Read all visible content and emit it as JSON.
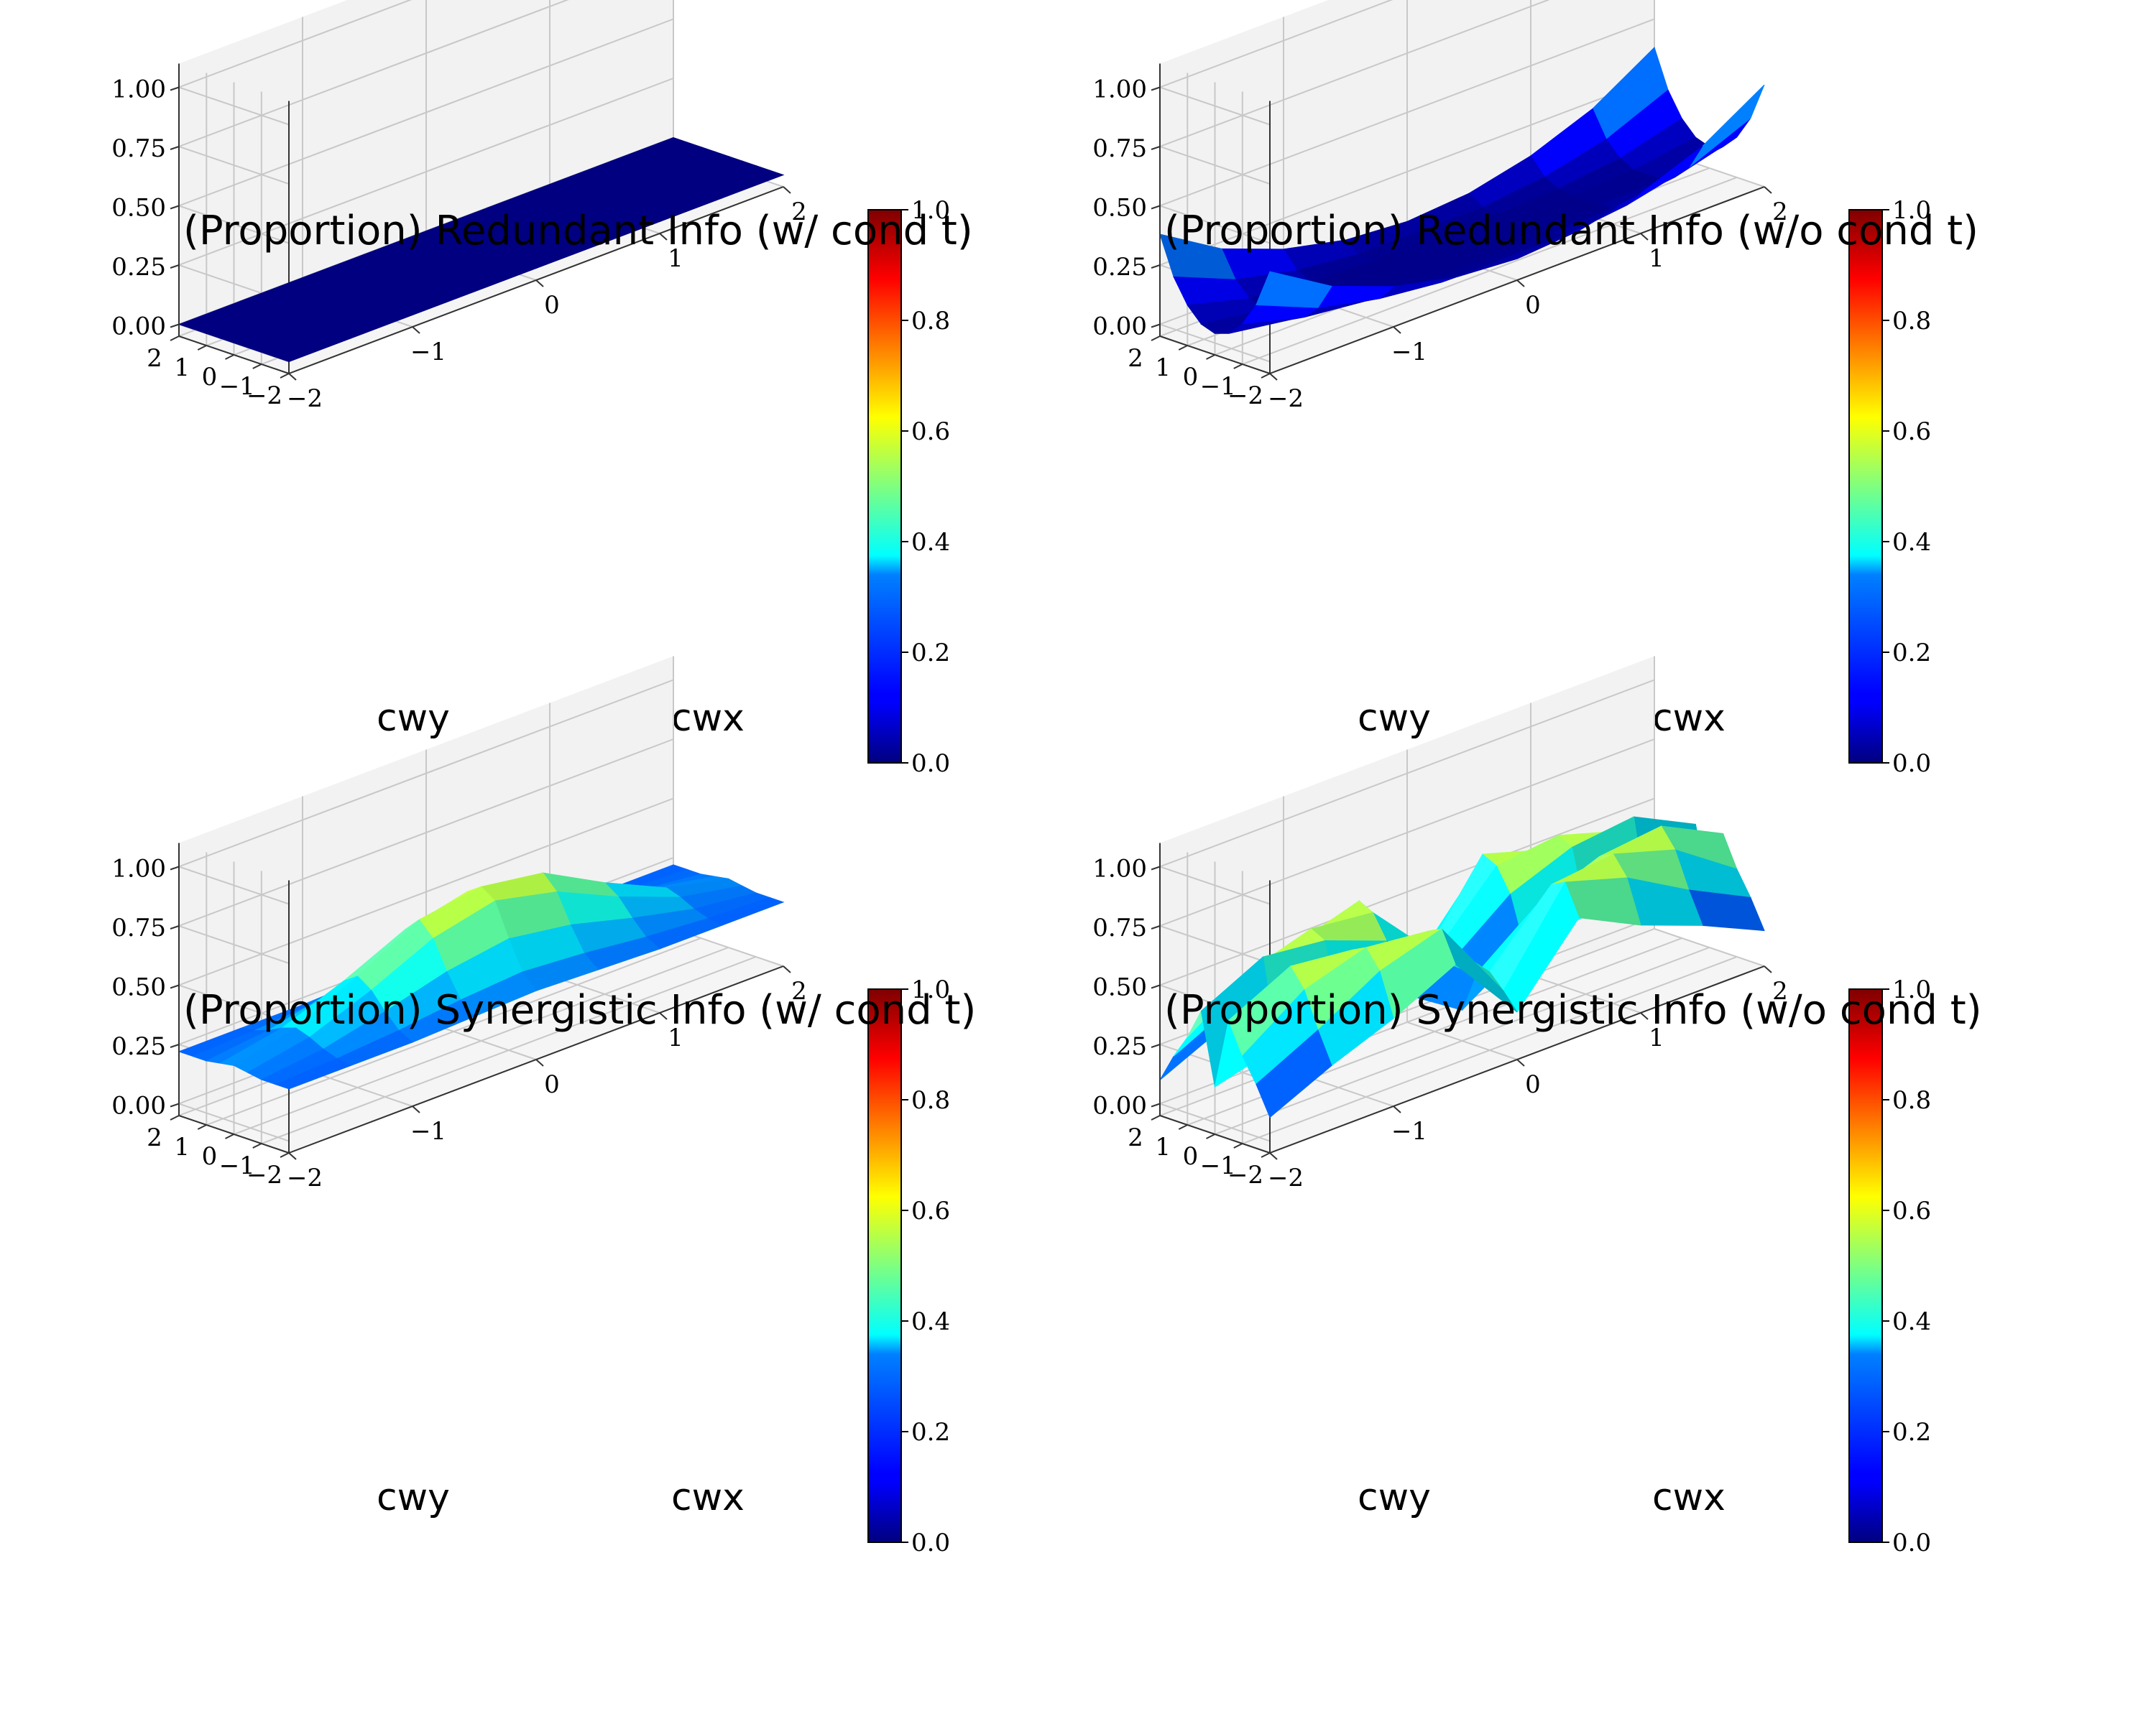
{
  "chart_data": [
    {
      "type": "surface",
      "title": "(Proportion) Redundant Info (w/ cond t)",
      "xlabel": "cwx",
      "ylabel": "cwy",
      "xlim": [
        -2,
        2
      ],
      "ylim": [
        -2,
        2
      ],
      "zlim": [
        -0.05,
        1.1
      ],
      "x_ticks": [
        "−2",
        "−1",
        "0",
        "1",
        "2"
      ],
      "y_ticks": [
        "−2",
        "−1",
        "0",
        "1",
        "2"
      ],
      "z_ticks": [
        "0.00",
        "0.25",
        "0.50",
        "0.75",
        "1.00"
      ],
      "colorbar": {
        "range": [
          0,
          1
        ],
        "ticks": [
          "0.0",
          "0.2",
          "0.4",
          "0.6",
          "0.8",
          "1.0"
        ],
        "colormap": "jet"
      },
      "x": [
        -2,
        -1.5,
        -1,
        -0.5,
        0,
        0.5,
        1,
        1.5,
        2
      ],
      "y": [
        -2,
        -1.5,
        -1,
        -0.5,
        0,
        0.5,
        1,
        1.5,
        2
      ],
      "z": [
        [
          0,
          0,
          0,
          0,
          0,
          0,
          0,
          0,
          0
        ],
        [
          0,
          0,
          0,
          0,
          0,
          0,
          0,
          0,
          0
        ],
        [
          0,
          0,
          0,
          0,
          0,
          0,
          0,
          0,
          0
        ],
        [
          0,
          0,
          0,
          0,
          0,
          0,
          0,
          0,
          0
        ],
        [
          0,
          0,
          0,
          0,
          0,
          0,
          0,
          0,
          0
        ],
        [
          0,
          0,
          0,
          0,
          0,
          0,
          0,
          0,
          0
        ],
        [
          0,
          0,
          0,
          0,
          0,
          0,
          0,
          0,
          0
        ],
        [
          0,
          0,
          0,
          0,
          0,
          0,
          0,
          0,
          0
        ],
        [
          0,
          0,
          0,
          0,
          0,
          0,
          0,
          0,
          0
        ]
      ]
    },
    {
      "type": "surface",
      "title": "(Proportion) Redundant Info (w/o cond t)",
      "xlabel": "cwx",
      "ylabel": "cwy",
      "xlim": [
        -2,
        2
      ],
      "ylim": [
        -2,
        2
      ],
      "zlim": [
        -0.05,
        1.1
      ],
      "x_ticks": [
        "−2",
        "−1",
        "0",
        "1",
        "2"
      ],
      "y_ticks": [
        "−2",
        "−1",
        "0",
        "1",
        "2"
      ],
      "z_ticks": [
        "0.00",
        "0.25",
        "0.50",
        "0.75",
        "1.00"
      ],
      "colorbar": {
        "range": [
          0,
          1
        ],
        "ticks": [
          "0.0",
          "0.2",
          "0.4",
          "0.6",
          "0.8",
          "1.0"
        ],
        "colormap": "jet"
      },
      "x": [
        -2,
        -1.5,
        -1,
        -0.5,
        0,
        0.5,
        1,
        1.5,
        2
      ],
      "y": [
        -2,
        -1.5,
        -1,
        -0.5,
        0,
        0.5,
        1,
        1.5,
        2
      ],
      "z": [
        [
          0.38,
          0.22,
          0.12,
          0.06,
          0.04,
          0.06,
          0.12,
          0.22,
          0.38
        ],
        [
          0.22,
          0.11,
          0.05,
          0.02,
          0.02,
          0.02,
          0.05,
          0.11,
          0.22
        ],
        [
          0.12,
          0.05,
          0.02,
          0.01,
          0.01,
          0.01,
          0.02,
          0.05,
          0.12
        ],
        [
          0.06,
          0.02,
          0.01,
          0.01,
          0.01,
          0.01,
          0.01,
          0.02,
          0.06
        ],
        [
          0.04,
          0.02,
          0.01,
          0.01,
          0.01,
          0.01,
          0.01,
          0.02,
          0.04
        ],
        [
          0.06,
          0.02,
          0.01,
          0.01,
          0.01,
          0.01,
          0.01,
          0.02,
          0.06
        ],
        [
          0.12,
          0.05,
          0.02,
          0.01,
          0.01,
          0.01,
          0.02,
          0.05,
          0.12
        ],
        [
          0.22,
          0.11,
          0.05,
          0.02,
          0.02,
          0.02,
          0.05,
          0.11,
          0.22
        ],
        [
          0.38,
          0.22,
          0.12,
          0.06,
          0.04,
          0.06,
          0.12,
          0.22,
          0.38
        ]
      ]
    },
    {
      "type": "surface",
      "title": "(Proportion) Synergistic Info (w/ cond t)",
      "xlabel": "cwx",
      "ylabel": "cwy",
      "xlim": [
        -2,
        2
      ],
      "ylim": [
        -2,
        2
      ],
      "zlim": [
        -0.05,
        1.1
      ],
      "x_ticks": [
        "−2",
        "−1",
        "0",
        "1",
        "2"
      ],
      "y_ticks": [
        "−2",
        "−1",
        "0",
        "1",
        "2"
      ],
      "z_ticks": [
        "0.00",
        "0.25",
        "0.50",
        "0.75",
        "1.00"
      ],
      "colorbar": {
        "range": [
          0,
          1
        ],
        "ticks": [
          "0.0",
          "0.2",
          "0.4",
          "0.6",
          "0.8",
          "1.0"
        ],
        "colormap": "jet"
      },
      "x": [
        -2,
        -1.5,
        -1,
        -0.5,
        0,
        0.5,
        1,
        1.5,
        2
      ],
      "y": [
        -2,
        -1.5,
        -1,
        -0.5,
        0,
        0.5,
        1,
        1.5,
        2
      ],
      "z": [
        [
          0.22,
          0.22,
          0.22,
          0.23,
          0.24,
          0.23,
          0.22,
          0.22,
          0.22
        ],
        [
          0.22,
          0.23,
          0.25,
          0.28,
          0.3,
          0.28,
          0.25,
          0.23,
          0.22
        ],
        [
          0.22,
          0.25,
          0.31,
          0.38,
          0.42,
          0.38,
          0.31,
          0.25,
          0.22
        ],
        [
          0.23,
          0.28,
          0.38,
          0.5,
          0.56,
          0.5,
          0.38,
          0.28,
          0.23
        ],
        [
          0.24,
          0.3,
          0.42,
          0.56,
          0.6,
          0.56,
          0.42,
          0.3,
          0.24
        ],
        [
          0.23,
          0.28,
          0.38,
          0.5,
          0.56,
          0.5,
          0.38,
          0.28,
          0.23
        ],
        [
          0.22,
          0.25,
          0.31,
          0.38,
          0.42,
          0.38,
          0.31,
          0.25,
          0.22
        ],
        [
          0.22,
          0.23,
          0.25,
          0.28,
          0.3,
          0.28,
          0.25,
          0.23,
          0.22
        ],
        [
          0.22,
          0.22,
          0.22,
          0.23,
          0.24,
          0.23,
          0.22,
          0.22,
          0.22
        ]
      ]
    },
    {
      "type": "surface",
      "title": "(Proportion) Synergistic Info (w/o cond t)",
      "xlabel": "cwx",
      "ylabel": "cwy",
      "xlim": [
        -2,
        2
      ],
      "ylim": [
        -2,
        2
      ],
      "zlim": [
        -0.05,
        1.1
      ],
      "x_ticks": [
        "−2",
        "−1",
        "0",
        "1",
        "2"
      ],
      "y_ticks": [
        "−2",
        "−1",
        "0",
        "1",
        "2"
      ],
      "z_ticks": [
        "0.00",
        "0.25",
        "0.50",
        "0.75",
        "1.00"
      ],
      "colorbar": {
        "range": [
          0,
          1
        ],
        "ticks": [
          "0.0",
          "0.2",
          "0.4",
          "0.6",
          "0.8",
          "1.0"
        ],
        "colormap": "jet"
      },
      "x": [
        -2,
        -1.5,
        -1,
        -0.5,
        0,
        0.5,
        1,
        1.5,
        2
      ],
      "y": [
        -2,
        -1.5,
        -1,
        -0.5,
        0,
        0.5,
        1,
        1.5,
        2
      ],
      "z": [
        [
          0.1,
          0.22,
          0.32,
          0.45,
          0.15,
          0.45,
          0.32,
          0.22,
          0.1
        ],
        [
          0.22,
          0.35,
          0.5,
          0.58,
          0.22,
          0.58,
          0.5,
          0.35,
          0.22
        ],
        [
          0.32,
          0.5,
          0.58,
          0.55,
          0.28,
          0.55,
          0.58,
          0.5,
          0.32
        ],
        [
          0.45,
          0.58,
          0.55,
          0.45,
          0.25,
          0.45,
          0.55,
          0.58,
          0.45
        ],
        [
          0.15,
          0.22,
          0.28,
          0.25,
          0.08,
          0.25,
          0.28,
          0.22,
          0.15
        ],
        [
          0.45,
          0.58,
          0.55,
          0.45,
          0.25,
          0.45,
          0.55,
          0.58,
          0.45
        ],
        [
          0.32,
          0.5,
          0.58,
          0.55,
          0.28,
          0.55,
          0.58,
          0.5,
          0.32
        ],
        [
          0.22,
          0.35,
          0.5,
          0.58,
          0.22,
          0.58,
          0.5,
          0.35,
          0.22
        ],
        [
          0.1,
          0.22,
          0.32,
          0.45,
          0.15,
          0.45,
          0.32,
          0.22,
          0.1
        ]
      ]
    }
  ]
}
